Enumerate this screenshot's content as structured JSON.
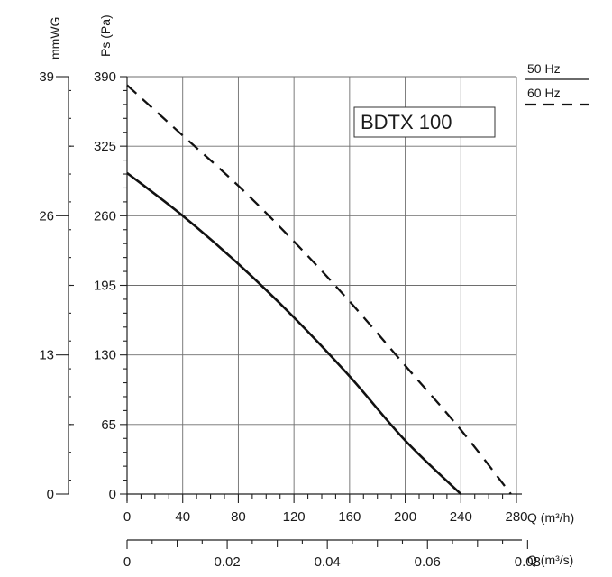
{
  "chart_data": {
    "type": "line",
    "title": "BDTX 100",
    "xlabel": "Q (m³/h)",
    "x2label": "Q (m³/s)",
    "ylabel": "Ps (Pa)",
    "y2label": "mmWG",
    "xlim": [
      0,
      280
    ],
    "ylim": [
      0,
      390
    ],
    "x_ticks": [
      0,
      40,
      80,
      120,
      160,
      200,
      240,
      280
    ],
    "x_tick_labels": [
      "0",
      "40",
      "80",
      "120",
      "160",
      "200",
      "240",
      "280"
    ],
    "x2_ticks": [
      0,
      0.02,
      0.04,
      0.06,
      0.08
    ],
    "x2_tick_labels": [
      "0",
      "0.02",
      "0.04",
      "0.06",
      "0.08"
    ],
    "y_ticks": [
      0,
      65,
      130,
      195,
      260,
      325,
      390
    ],
    "y_tick_labels": [
      "0",
      "65",
      "130",
      "195",
      "260",
      "325",
      "390"
    ],
    "y2_ticks": [
      0,
      13,
      26,
      39
    ],
    "y2_tick_labels": [
      "0",
      "13",
      "26",
      "39"
    ],
    "grid": true,
    "legend_position": "top-right",
    "series": [
      {
        "name": "50 Hz",
        "style": "solid",
        "color": "#111111",
        "x": [
          0,
          40,
          80,
          120,
          160,
          200,
          240
        ],
        "y": [
          300,
          260,
          215,
          165,
          110,
          50,
          0
        ]
      },
      {
        "name": "60 Hz",
        "style": "dashed",
        "color": "#111111",
        "x": [
          0,
          40,
          80,
          120,
          160,
          200,
          240,
          276
        ],
        "y": [
          382,
          335,
          288,
          236,
          180,
          120,
          60,
          0
        ]
      }
    ]
  }
}
